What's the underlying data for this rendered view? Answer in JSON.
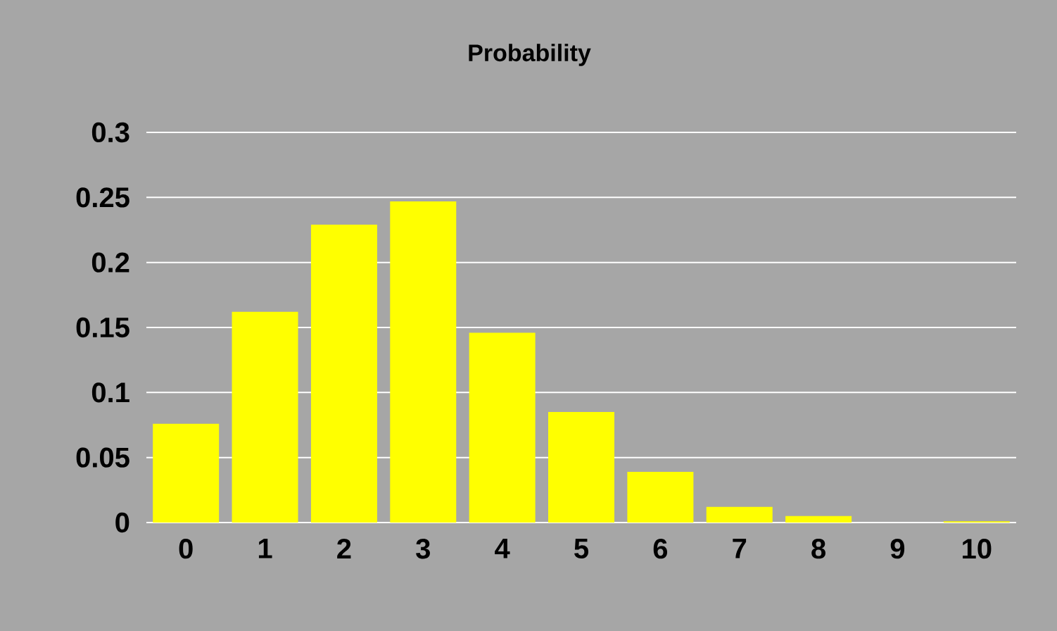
{
  "chart_data": {
    "type": "bar",
    "title": "Probability",
    "categories": [
      "0",
      "1",
      "2",
      "3",
      "4",
      "5",
      "6",
      "7",
      "8",
      "9",
      "10"
    ],
    "values": [
      0.076,
      0.162,
      0.229,
      0.247,
      0.146,
      0.085,
      0.039,
      0.012,
      0.005,
      0.0,
      0.001
    ],
    "color": "#ffff00",
    "ylim": [
      0,
      0.3
    ],
    "yticks": [
      0,
      0.05,
      0.1,
      0.15,
      0.2,
      0.25,
      0.3
    ],
    "grid": "y"
  }
}
